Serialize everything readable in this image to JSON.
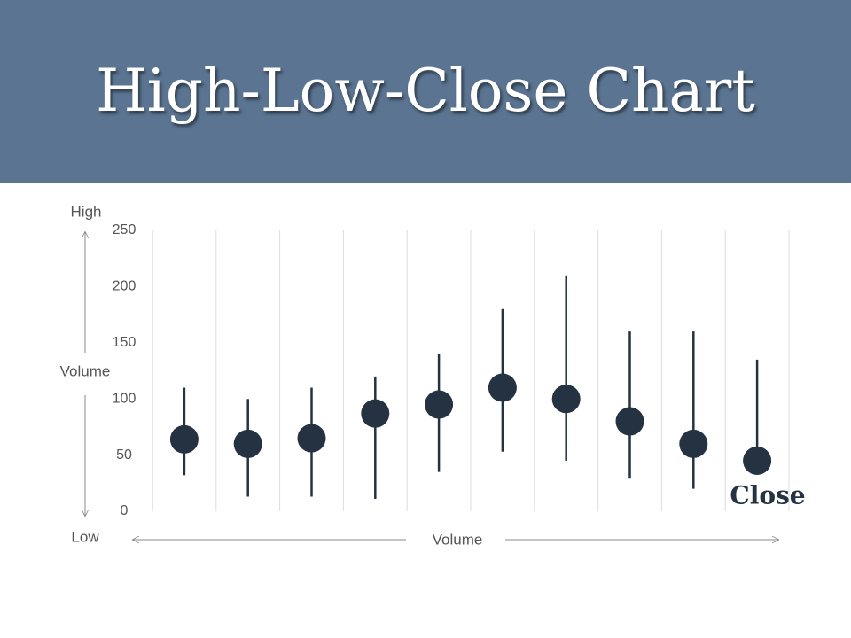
{
  "chart_data": {
    "type": "hlc",
    "title": "High-Low-Close Chart",
    "high": [
      110,
      100,
      110,
      120,
      140,
      180,
      210,
      160,
      160,
      135
    ],
    "low": [
      32,
      13,
      13,
      11,
      35,
      53,
      45,
      29,
      20,
      45
    ],
    "close": [
      64,
      60,
      65,
      87,
      95,
      110,
      100,
      80,
      60,
      45
    ],
    "color": "#243242",
    "ylim": [
      0,
      250
    ],
    "yticks": [
      0,
      50,
      100,
      150,
      200,
      250
    ],
    "grid": true,
    "annotations": {
      "high": "High",
      "low": "Low",
      "y_axis": "Volume",
      "x_axis": "Volume",
      "close": "Close"
    }
  }
}
